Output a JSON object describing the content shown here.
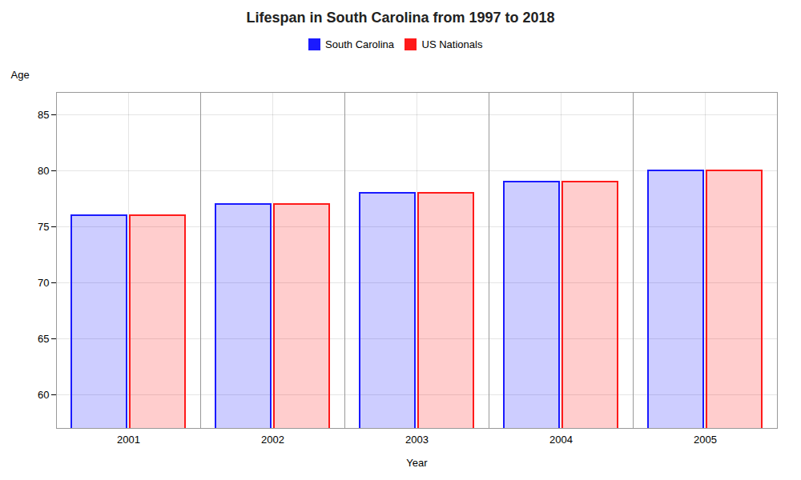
{
  "chart_data": {
    "type": "bar",
    "title": "Lifespan in South Carolina from 1997 to 2018",
    "xlabel": "Year",
    "ylabel": "Age",
    "categories": [
      2001,
      2002,
      2003,
      2004,
      2005
    ],
    "series": [
      {
        "name": "South Carolina",
        "color": "#1a1aff",
        "values": [
          76.0,
          77.0,
          78.0,
          79.0,
          80.0
        ]
      },
      {
        "name": "US Nationals",
        "color": "#ff1a1a",
        "values": [
          76.0,
          77.0,
          78.0,
          79.0,
          80.0
        ]
      }
    ],
    "ylim": [
      57,
      87
    ],
    "yticks": [
      60,
      65,
      70,
      75,
      80,
      85
    ],
    "grid": true,
    "legend": "top"
  }
}
